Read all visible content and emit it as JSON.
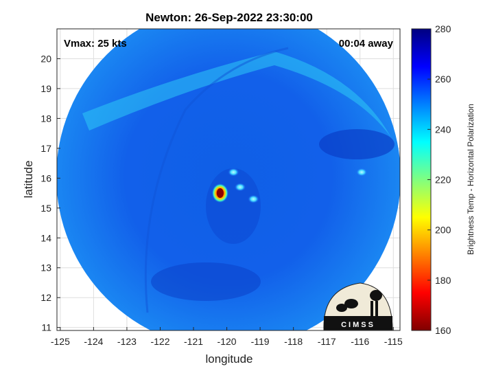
{
  "chart_data": {
    "type": "heatmap",
    "title": "Newton: 26-Sep-2022 23:30:00",
    "annotations": {
      "vmax": "Vmax: 25 kts",
      "away": "00:04 away"
    },
    "xlabel": "longitude",
    "ylabel": "latitude",
    "xlim": [
      -125.1,
      -114.8
    ],
    "ylim": [
      10.9,
      21.0
    ],
    "xticks": [
      -125,
      -124,
      -123,
      -122,
      -121,
      -120,
      -119,
      -118,
      -117,
      -116,
      -115
    ],
    "yticks": [
      11,
      12,
      13,
      14,
      15,
      16,
      17,
      18,
      19,
      20
    ],
    "grid": true,
    "colorbar": {
      "label": "Brightness Temp - Horizontal Polarization",
      "range": [
        160,
        280
      ],
      "ticks": [
        160,
        180,
        200,
        220,
        240,
        260,
        280
      ],
      "colormap": "jet",
      "colors": [
        "#800000",
        "#ff0000",
        "#ff8000",
        "#ffff00",
        "#80ff80",
        "#00ffff",
        "#0080ff",
        "#0000ff",
        "#000080"
      ]
    },
    "swath": {
      "center": [
        -120.0,
        15.8
      ],
      "radius_deg": 5.0
    },
    "features": [
      {
        "name": "cold core",
        "lon": -120.2,
        "lat": 15.5,
        "value": 165
      },
      {
        "name": "convective spot",
        "lon": -119.8,
        "lat": 16.2,
        "value": 238
      },
      {
        "name": "convective spot",
        "lon": -119.6,
        "lat": 15.7,
        "value": 240
      },
      {
        "name": "convective spot",
        "lon": -119.2,
        "lat": 15.3,
        "value": 240
      },
      {
        "name": "convective spot",
        "lon": -115.95,
        "lat": 16.2,
        "value": 245
      }
    ],
    "background_value": 255,
    "logo_text": "CIMSS"
  }
}
